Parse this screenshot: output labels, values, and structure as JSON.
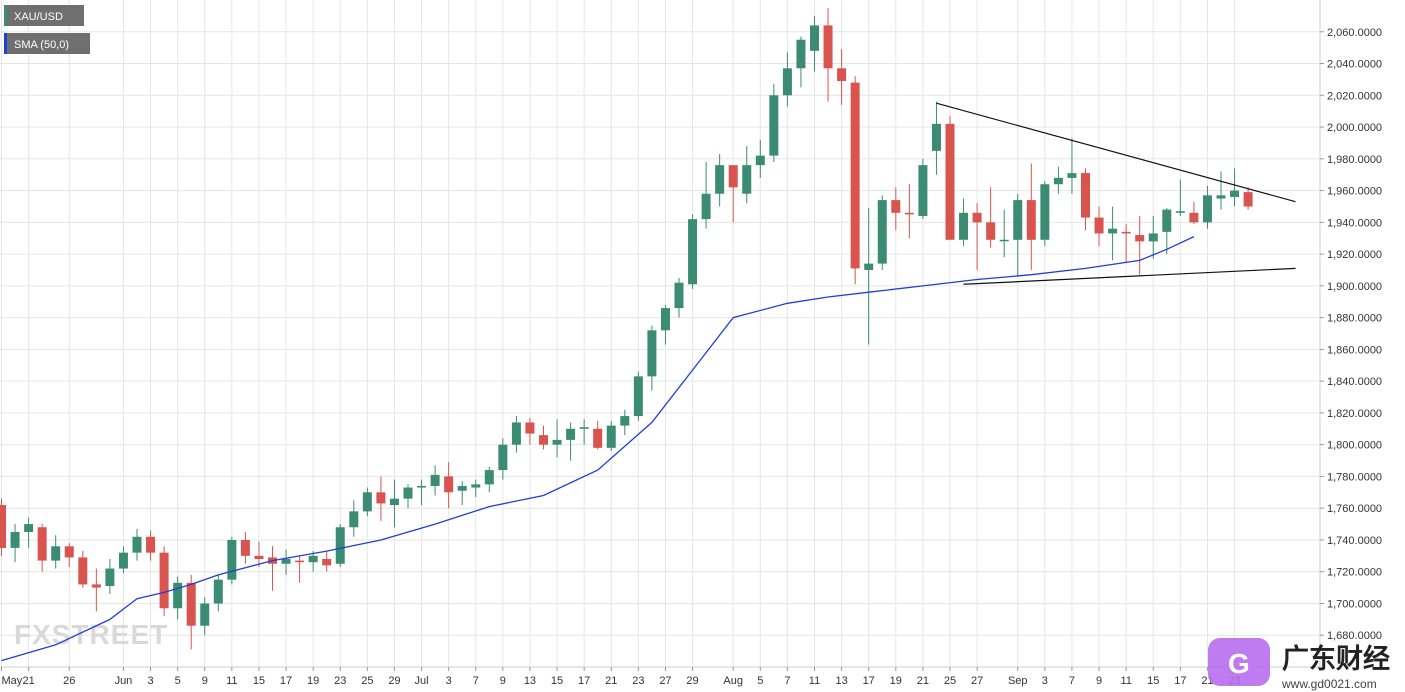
{
  "colors": {
    "bull": "#3b8c72",
    "bear": "#d9534f",
    "sma": "#1f3fd8",
    "trendline": "#111111",
    "grid": "#e6e6e6",
    "legend_bg": "#6f6f6f",
    "legend_sma_bar": "#1f3fd8",
    "legend_price_bar": "#3b8c72"
  },
  "legend": {
    "price_label": "XAU/USD",
    "sma_label": "SMA (50,0)"
  },
  "watermarks": {
    "fxstreet": "FXSTREET",
    "gd_name": "广东财经",
    "gd_url": "www.gd0021.com"
  },
  "chart_data": {
    "type": "candlestick",
    "y_range": [
      1660,
      2080
    ],
    "y_ticks": [
      {
        "value": 1680,
        "label": "1,680.0000"
      },
      {
        "value": 1700,
        "label": "1,700.0000"
      },
      {
        "value": 1720,
        "label": "1,720.0000"
      },
      {
        "value": 1740,
        "label": "1,740.0000"
      },
      {
        "value": 1760,
        "label": "1,760.0000"
      },
      {
        "value": 1780,
        "label": "1,780.0000"
      },
      {
        "value": 1800,
        "label": "1,800.0000"
      },
      {
        "value": 1820,
        "label": "1,820.0000"
      },
      {
        "value": 1840,
        "label": "1,840.0000"
      },
      {
        "value": 1860,
        "label": "1,860.0000"
      },
      {
        "value": 1880,
        "label": "1,880.0000"
      },
      {
        "value": 1900,
        "label": "1,900.0000"
      },
      {
        "value": 1920,
        "label": "1,920.0000"
      },
      {
        "value": 1940,
        "label": "1,940.0000"
      },
      {
        "value": 1960,
        "label": "1,960.0000"
      },
      {
        "value": 1980,
        "label": "1,980.0000"
      },
      {
        "value": 2000,
        "label": "2,000.0000"
      },
      {
        "value": 2020,
        "label": "2,020.0000"
      },
      {
        "value": 2040,
        "label": "2,040.0000"
      },
      {
        "value": 2060,
        "label": "2,060.0000"
      }
    ],
    "x_ticks": [
      {
        "i": 0,
        "label": "May"
      },
      {
        "i": 2,
        "label": "21"
      },
      {
        "i": 5,
        "label": "26"
      },
      {
        "i": 9,
        "label": "Jun"
      },
      {
        "i": 11,
        "label": "3"
      },
      {
        "i": 13,
        "label": "5"
      },
      {
        "i": 15,
        "label": "9"
      },
      {
        "i": 17,
        "label": "11"
      },
      {
        "i": 19,
        "label": "15"
      },
      {
        "i": 21,
        "label": "17"
      },
      {
        "i": 23,
        "label": "19"
      },
      {
        "i": 25,
        "label": "23"
      },
      {
        "i": 27,
        "label": "25"
      },
      {
        "i": 29,
        "label": "29"
      },
      {
        "i": 31,
        "label": "Jul"
      },
      {
        "i": 33,
        "label": "3"
      },
      {
        "i": 35,
        "label": "7"
      },
      {
        "i": 37,
        "label": "9"
      },
      {
        "i": 39,
        "label": "13"
      },
      {
        "i": 41,
        "label": "15"
      },
      {
        "i": 43,
        "label": "17"
      },
      {
        "i": 45,
        "label": "21"
      },
      {
        "i": 47,
        "label": "23"
      },
      {
        "i": 49,
        "label": "27"
      },
      {
        "i": 51,
        "label": "29"
      },
      {
        "i": 54,
        "label": "Aug"
      },
      {
        "i": 56,
        "label": "5"
      },
      {
        "i": 58,
        "label": "7"
      },
      {
        "i": 60,
        "label": "11"
      },
      {
        "i": 62,
        "label": "13"
      },
      {
        "i": 64,
        "label": "17"
      },
      {
        "i": 66,
        "label": "19"
      },
      {
        "i": 68,
        "label": "21"
      },
      {
        "i": 70,
        "label": "25"
      },
      {
        "i": 72,
        "label": "27"
      },
      {
        "i": 75,
        "label": "Sep"
      },
      {
        "i": 77,
        "label": "3"
      },
      {
        "i": 79,
        "label": "7"
      },
      {
        "i": 81,
        "label": "9"
      },
      {
        "i": 83,
        "label": "11"
      },
      {
        "i": 85,
        "label": "15"
      },
      {
        "i": 87,
        "label": "17"
      },
      {
        "i": 89,
        "label": "21"
      },
      {
        "i": 91,
        "label": "23"
      }
    ],
    "candles": [
      {
        "o": 1762,
        "h": 1766,
        "l": 1730,
        "c": 1735
      },
      {
        "o": 1735,
        "h": 1750,
        "l": 1726,
        "c": 1745
      },
      {
        "o": 1745,
        "h": 1754,
        "l": 1735,
        "c": 1750
      },
      {
        "o": 1748,
        "h": 1750,
        "l": 1720,
        "c": 1727
      },
      {
        "o": 1727,
        "h": 1743,
        "l": 1722,
        "c": 1736
      },
      {
        "o": 1736,
        "h": 1738,
        "l": 1723,
        "c": 1729
      },
      {
        "o": 1729,
        "h": 1733,
        "l": 1710,
        "c": 1712
      },
      {
        "o": 1712,
        "h": 1722,
        "l": 1695,
        "c": 1710
      },
      {
        "o": 1711,
        "h": 1728,
        "l": 1706,
        "c": 1722
      },
      {
        "o": 1722,
        "h": 1736,
        "l": 1719,
        "c": 1732
      },
      {
        "o": 1732,
        "h": 1747,
        "l": 1727,
        "c": 1742
      },
      {
        "o": 1742,
        "h": 1746,
        "l": 1727,
        "c": 1732
      },
      {
        "o": 1732,
        "h": 1736,
        "l": 1692,
        "c": 1697
      },
      {
        "o": 1697,
        "h": 1717,
        "l": 1690,
        "c": 1713
      },
      {
        "o": 1713,
        "h": 1718,
        "l": 1671,
        "c": 1686
      },
      {
        "o": 1686,
        "h": 1704,
        "l": 1680,
        "c": 1700
      },
      {
        "o": 1700,
        "h": 1718,
        "l": 1695,
        "c": 1715
      },
      {
        "o": 1715,
        "h": 1742,
        "l": 1712,
        "c": 1740
      },
      {
        "o": 1740,
        "h": 1745,
        "l": 1725,
        "c": 1730
      },
      {
        "o": 1730,
        "h": 1739,
        "l": 1723,
        "c": 1728
      },
      {
        "o": 1729,
        "h": 1736,
        "l": 1708,
        "c": 1725
      },
      {
        "o": 1725,
        "h": 1734,
        "l": 1718,
        "c": 1728
      },
      {
        "o": 1727,
        "h": 1730,
        "l": 1713,
        "c": 1726
      },
      {
        "o": 1726,
        "h": 1733,
        "l": 1720,
        "c": 1730
      },
      {
        "o": 1728,
        "h": 1733,
        "l": 1720,
        "c": 1724
      },
      {
        "o": 1725,
        "h": 1750,
        "l": 1723,
        "c": 1748
      },
      {
        "o": 1748,
        "h": 1765,
        "l": 1742,
        "c": 1758
      },
      {
        "o": 1758,
        "h": 1773,
        "l": 1755,
        "c": 1770
      },
      {
        "o": 1770,
        "h": 1780,
        "l": 1752,
        "c": 1763
      },
      {
        "o": 1762,
        "h": 1778,
        "l": 1748,
        "c": 1766
      },
      {
        "o": 1766,
        "h": 1775,
        "l": 1760,
        "c": 1773
      },
      {
        "o": 1773,
        "h": 1778,
        "l": 1762,
        "c": 1774
      },
      {
        "o": 1774,
        "h": 1787,
        "l": 1768,
        "c": 1781
      },
      {
        "o": 1780,
        "h": 1789,
        "l": 1760,
        "c": 1770
      },
      {
        "o": 1771,
        "h": 1777,
        "l": 1762,
        "c": 1774
      },
      {
        "o": 1773,
        "h": 1778,
        "l": 1767,
        "c": 1775
      },
      {
        "o": 1775,
        "h": 1786,
        "l": 1770,
        "c": 1784
      },
      {
        "o": 1784,
        "h": 1804,
        "l": 1778,
        "c": 1800
      },
      {
        "o": 1800,
        "h": 1818,
        "l": 1795,
        "c": 1814
      },
      {
        "o": 1814,
        "h": 1817,
        "l": 1800,
        "c": 1807
      },
      {
        "o": 1806,
        "h": 1812,
        "l": 1797,
        "c": 1800
      },
      {
        "o": 1800,
        "h": 1816,
        "l": 1792,
        "c": 1803
      },
      {
        "o": 1803,
        "h": 1814,
        "l": 1790,
        "c": 1810
      },
      {
        "o": 1810,
        "h": 1816,
        "l": 1800,
        "c": 1811
      },
      {
        "o": 1810,
        "h": 1815,
        "l": 1797,
        "c": 1798
      },
      {
        "o": 1798,
        "h": 1815,
        "l": 1796,
        "c": 1812
      },
      {
        "o": 1812,
        "h": 1822,
        "l": 1806,
        "c": 1818
      },
      {
        "o": 1818,
        "h": 1846,
        "l": 1815,
        "c": 1843
      },
      {
        "o": 1843,
        "h": 1875,
        "l": 1834,
        "c": 1872
      },
      {
        "o": 1872,
        "h": 1888,
        "l": 1863,
        "c": 1886
      },
      {
        "o": 1886,
        "h": 1905,
        "l": 1880,
        "c": 1902
      },
      {
        "o": 1901,
        "h": 1945,
        "l": 1898,
        "c": 1942
      },
      {
        "o": 1942,
        "h": 1978,
        "l": 1936,
        "c": 1958
      },
      {
        "o": 1958,
        "h": 1983,
        "l": 1950,
        "c": 1976
      },
      {
        "o": 1976,
        "h": 1976,
        "l": 1940,
        "c": 1962
      },
      {
        "o": 1958,
        "h": 1988,
        "l": 1952,
        "c": 1976
      },
      {
        "o": 1976,
        "h": 1992,
        "l": 1968,
        "c": 1982
      },
      {
        "o": 1982,
        "h": 2027,
        "l": 1978,
        "c": 2020
      },
      {
        "o": 2020,
        "h": 2047,
        "l": 2013,
        "c": 2037
      },
      {
        "o": 2037,
        "h": 2057,
        "l": 2025,
        "c": 2055
      },
      {
        "o": 2048,
        "h": 2070,
        "l": 2035,
        "c": 2064
      },
      {
        "o": 2064,
        "h": 2075,
        "l": 2016,
        "c": 2037
      },
      {
        "o": 2037,
        "h": 2049,
        "l": 2014,
        "c": 2029
      },
      {
        "o": 2028,
        "h": 2032,
        "l": 1901,
        "c": 1911
      },
      {
        "o": 1910,
        "h": 1949,
        "l": 1863,
        "c": 1914
      },
      {
        "o": 1914,
        "h": 1957,
        "l": 1910,
        "c": 1954
      },
      {
        "o": 1954,
        "h": 1962,
        "l": 1935,
        "c": 1946
      },
      {
        "o": 1946,
        "h": 1964,
        "l": 1930,
        "c": 1945
      },
      {
        "o": 1944,
        "h": 1980,
        "l": 1942,
        "c": 1976
      },
      {
        "o": 1985,
        "h": 2016,
        "l": 1970,
        "c": 2002
      },
      {
        "o": 2002,
        "h": 2007,
        "l": 1930,
        "c": 1929
      },
      {
        "o": 1929,
        "h": 1955,
        "l": 1925,
        "c": 1946
      },
      {
        "o": 1946,
        "h": 1952,
        "l": 1910,
        "c": 1940
      },
      {
        "o": 1940,
        "h": 1962,
        "l": 1924,
        "c": 1929
      },
      {
        "o": 1929,
        "h": 1948,
        "l": 1918,
        "c": 1929
      },
      {
        "o": 1929,
        "h": 1958,
        "l": 1906,
        "c": 1954
      },
      {
        "o": 1954,
        "h": 1977,
        "l": 1910,
        "c": 1929
      },
      {
        "o": 1929,
        "h": 1966,
        "l": 1925,
        "c": 1964
      },
      {
        "o": 1964,
        "h": 1975,
        "l": 1958,
        "c": 1968
      },
      {
        "o": 1968,
        "h": 1993,
        "l": 1958,
        "c": 1971
      },
      {
        "o": 1971,
        "h": 1974,
        "l": 1935,
        "c": 1943
      },
      {
        "o": 1943,
        "h": 1950,
        "l": 1925,
        "c": 1933
      },
      {
        "o": 1933,
        "h": 1950,
        "l": 1916,
        "c": 1936
      },
      {
        "o": 1934,
        "h": 1939,
        "l": 1915,
        "c": 1933
      },
      {
        "o": 1932,
        "h": 1944,
        "l": 1907,
        "c": 1928
      },
      {
        "o": 1928,
        "h": 1944,
        "l": 1917,
        "c": 1933
      },
      {
        "o": 1934,
        "h": 1949,
        "l": 1920,
        "c": 1948
      },
      {
        "o": 1946,
        "h": 1967,
        "l": 1944,
        "c": 1947
      },
      {
        "o": 1946,
        "h": 1953,
        "l": 1939,
        "c": 1940
      },
      {
        "o": 1940,
        "h": 1963,
        "l": 1936,
        "c": 1957
      },
      {
        "o": 1955,
        "h": 1972,
        "l": 1948,
        "c": 1957
      },
      {
        "o": 1956,
        "h": 1974,
        "l": 1950,
        "c": 1960
      },
      {
        "o": 1959,
        "h": 1962,
        "l": 1948,
        "c": 1950
      }
    ],
    "sma": [
      {
        "i": 0,
        "v": 1664
      },
      {
        "i": 4,
        "v": 1674
      },
      {
        "i": 8,
        "v": 1690
      },
      {
        "i": 10,
        "v": 1703
      },
      {
        "i": 12,
        "v": 1707
      },
      {
        "i": 14,
        "v": 1712
      },
      {
        "i": 16,
        "v": 1718
      },
      {
        "i": 20,
        "v": 1727
      },
      {
        "i": 24,
        "v": 1733
      },
      {
        "i": 28,
        "v": 1740
      },
      {
        "i": 32,
        "v": 1750
      },
      {
        "i": 36,
        "v": 1761
      },
      {
        "i": 40,
        "v": 1768
      },
      {
        "i": 44,
        "v": 1784
      },
      {
        "i": 48,
        "v": 1814
      },
      {
        "i": 52,
        "v": 1858
      },
      {
        "i": 54,
        "v": 1880
      },
      {
        "i": 58,
        "v": 1889
      },
      {
        "i": 61,
        "v": 1893
      },
      {
        "i": 64,
        "v": 1896
      },
      {
        "i": 68,
        "v": 1900
      },
      {
        "i": 72,
        "v": 1904
      },
      {
        "i": 76,
        "v": 1907
      },
      {
        "i": 80,
        "v": 1911
      },
      {
        "i": 84,
        "v": 1916
      },
      {
        "i": 86,
        "v": 1923
      },
      {
        "i": 88,
        "v": 1931
      }
    ],
    "trendlines": [
      {
        "name": "upper-trendline",
        "from": {
          "i": 69,
          "v": 2015
        },
        "to": {
          "i": 95.5,
          "v": 1953
        }
      },
      {
        "name": "lower-trendline",
        "from": {
          "i": 71,
          "v": 1901
        },
        "to": {
          "i": 95.5,
          "v": 1911
        }
      }
    ]
  }
}
